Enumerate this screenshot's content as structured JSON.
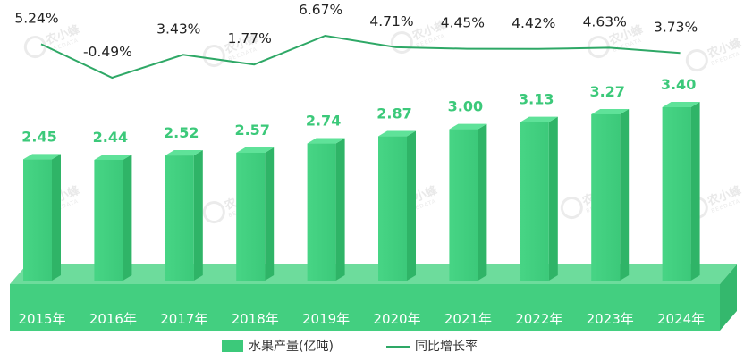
{
  "chart_data": {
    "type": "bar",
    "categories": [
      "2015年",
      "2016年",
      "2017年",
      "2018年",
      "2019年",
      "2020年",
      "2021年",
      "2022年",
      "2023年",
      "2024年"
    ],
    "series": [
      {
        "name": "水果产量(亿吨)",
        "type": "bar",
        "axis": "left",
        "values": [
          2.45,
          2.44,
          2.52,
          2.57,
          2.74,
          2.87,
          3.0,
          3.13,
          3.27,
          3.4
        ],
        "labels": [
          "2.45",
          "2.44",
          "2.52",
          "2.57",
          "2.74",
          "2.87",
          "3.00",
          "3.13",
          "3.27",
          "3.40"
        ]
      },
      {
        "name": "同比增长率",
        "type": "line",
        "axis": "right",
        "unit": "%",
        "values": [
          5.24,
          -0.49,
          3.43,
          1.77,
          6.67,
          4.71,
          4.45,
          4.42,
          4.63,
          3.73
        ],
        "labels": [
          "5.24%",
          "-0.49%",
          "3.43%",
          "1.77%",
          "6.67%",
          "4.71%",
          "4.45%",
          "4.42%",
          "4.63%",
          "3.73%"
        ]
      }
    ],
    "legend_position": "bottom",
    "grid": false,
    "colors": {
      "bar": "#3cc97a",
      "line": "#2ea866"
    }
  },
  "watermark": {
    "text": "农小蜂",
    "subtext": "BEEDATA"
  }
}
